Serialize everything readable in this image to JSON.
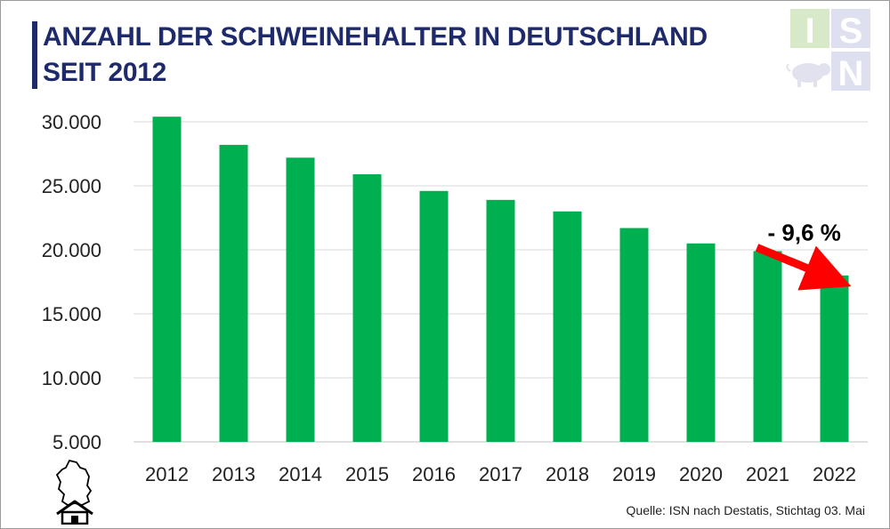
{
  "title": {
    "line1": "ANZAHL DER SCHWEINEHALTER IN DEUTSCHLAND",
    "line2": "SEIT 2012"
  },
  "logo": {
    "letters": [
      "I",
      "S",
      "N"
    ],
    "icon": "pig-icon"
  },
  "annotation": {
    "text": "- 9,6 %",
    "color": "#ff0000"
  },
  "source": "Quelle: ISN nach Destatis, Stichtag 03. Mai",
  "home_icon": "germany-map-home-icon",
  "colors": {
    "bar": "#00b050",
    "title": "#1f2a6b",
    "grid": "#d9d9d9",
    "arrow": "#ff0000"
  },
  "chart_data": {
    "type": "bar",
    "title": "ANZAHL DER SCHWEINEHALTER IN DEUTSCHLAND SEIT 2012",
    "categories": [
      "2012",
      "2013",
      "2014",
      "2015",
      "2016",
      "2017",
      "2018",
      "2019",
      "2020",
      "2021",
      "2022"
    ],
    "values": [
      30400,
      28200,
      27200,
      25900,
      24600,
      23900,
      23000,
      21700,
      20500,
      19900,
      18000
    ],
    "ylim": [
      5000,
      30000
    ],
    "yticks": [
      5000,
      10000,
      15000,
      20000,
      25000,
      30000
    ],
    "ytick_labels": [
      "5.000",
      "10.000",
      "15.000",
      "20.000",
      "25.000",
      "30.000"
    ],
    "xlabel": "",
    "ylabel": "",
    "grid": true,
    "legend": "none"
  }
}
